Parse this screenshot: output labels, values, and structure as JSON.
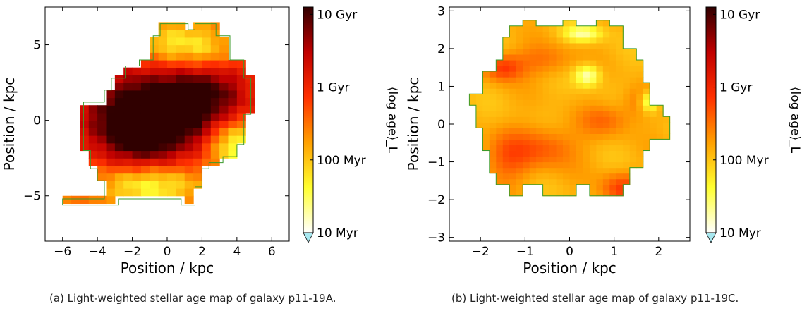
{
  "captions": {
    "a": "(a) Light-weighted stellar age map of galaxy p11-19A.",
    "b": "(b) Light-weighted stellar age map of galaxy p11-19C."
  },
  "chart_data": [
    {
      "type": "heatmap",
      "id": "a",
      "xlabel": "Position / kpc",
      "ylabel": "Position / kpc",
      "xlim": [
        -7,
        7
      ],
      "ylim": [
        -8,
        7.5
      ],
      "xticks": [
        -6,
        -4,
        -2,
        0,
        2,
        4,
        6
      ],
      "yticks": [
        -5,
        0,
        5
      ],
      "tick_labels_x": [
        "−6",
        "−4",
        "−2",
        "0",
        "2",
        "4",
        "6"
      ],
      "tick_labels_y": [
        "−5",
        "0",
        "5"
      ],
      "cell_size": 0.5,
      "outline_color": "#3a9a2a",
      "colorbar": {
        "label": "⟨log age⟩_L",
        "log_range": [
          7,
          10.1
        ],
        "ticks": [
          10,
          9,
          8,
          7
        ],
        "tick_labels": [
          "10 Gyr",
          "1 Gyr",
          "100 Myr",
          "10 Myr"
        ],
        "under_color": "#a8e8f0",
        "stops": [
          "#ffffff",
          "#ffff30",
          "#ffa000",
          "#ff3000",
          "#c00000",
          "#300000"
        ]
      },
      "polygon": [
        [
          -4.8,
          -2
        ],
        [
          -4.8,
          1.2
        ],
        [
          -3.6,
          1.2
        ],
        [
          -3.6,
          2.0
        ],
        [
          -3.2,
          2.0
        ],
        [
          -3.2,
          2.8
        ],
        [
          -2.4,
          2.8
        ],
        [
          -2.4,
          3.6
        ],
        [
          -1.6,
          3.6
        ],
        [
          -1.6,
          4.0
        ],
        [
          -0.8,
          4.0
        ],
        [
          -0.8,
          5.6
        ],
        [
          -0.4,
          5.6
        ],
        [
          -0.4,
          6.4
        ],
        [
          1.2,
          6.4
        ],
        [
          1.2,
          6.0
        ],
        [
          1.6,
          6.0
        ],
        [
          1.6,
          6.4
        ],
        [
          2.8,
          6.4
        ],
        [
          2.8,
          5.6
        ],
        [
          3.6,
          5.6
        ],
        [
          3.6,
          4.0
        ],
        [
          4.4,
          4.0
        ],
        [
          4.4,
          2.8
        ],
        [
          4.8,
          2.8
        ],
        [
          4.8,
          0.4
        ],
        [
          4.4,
          0.4
        ],
        [
          4.4,
          -1.6
        ],
        [
          4.0,
          -1.6
        ],
        [
          4.0,
          -2.4
        ],
        [
          3.2,
          -2.4
        ],
        [
          3.2,
          -2.8
        ],
        [
          2.4,
          -2.8
        ],
        [
          2.4,
          -3.2
        ],
        [
          2.0,
          -3.2
        ],
        [
          2.0,
          -4.4
        ],
        [
          1.6,
          -4.4
        ],
        [
          1.6,
          -5.6
        ],
        [
          0.8,
          -5.6
        ],
        [
          0.8,
          -5.2
        ],
        [
          -2.8,
          -5.2
        ],
        [
          -2.8,
          -5.6
        ],
        [
          -6,
          -5.6
        ],
        [
          -6,
          -5.2
        ],
        [
          -3.6,
          -5.2
        ],
        [
          -3.6,
          -4.0
        ],
        [
          -4.0,
          -4.0
        ],
        [
          -4.0,
          -3.2
        ],
        [
          -4.4,
          -3.2
        ],
        [
          -4.4,
          -2.0
        ]
      ],
      "blobs": [
        {
          "x": -0.5,
          "y": 0.8,
          "sx": 3.2,
          "sy": 2.0,
          "a": 1.9
        },
        {
          "x": -1.6,
          "y": -1.2,
          "sx": 1.8,
          "sy": 1.4,
          "a": 1.0
        },
        {
          "x": 2.6,
          "y": 2.2,
          "sx": 1.6,
          "sy": 1.5,
          "a": 0.6
        },
        {
          "x": 0.3,
          "y": 5.0,
          "sx": 1.4,
          "sy": 1.0,
          "a": -0.9
        },
        {
          "x": -1.0,
          "y": -4.3,
          "sx": 2.0,
          "sy": 0.9,
          "a": -1.0
        },
        {
          "x": 3.8,
          "y": -1.5,
          "sx": 1.0,
          "sy": 1.2,
          "a": -1.3
        },
        {
          "x": 2.4,
          "y": 4.6,
          "sx": 1.0,
          "sy": 1.0,
          "a": -0.6
        }
      ],
      "base": 8.55
    },
    {
      "type": "heatmap",
      "id": "b",
      "xlabel": "Position / kpc",
      "ylabel": "Position / kpc",
      "xlim": [
        -2.7,
        2.7
      ],
      "ylim": [
        -3.1,
        3.1
      ],
      "xticks": [
        -2,
        -1,
        0,
        1,
        2
      ],
      "yticks": [
        -3,
        -2,
        -1,
        0,
        1,
        2,
        3
      ],
      "tick_labels_x": [
        "−2",
        "−1",
        "0",
        "1",
        "2"
      ],
      "tick_labels_y": [
        "−3",
        "−2",
        "−1",
        "0",
        "1",
        "2",
        "3"
      ],
      "cell_size": 0.15,
      "outline_color": "#3a9a2a",
      "colorbar": {
        "label": "⟨log age⟩_L",
        "log_range": [
          7,
          10.1
        ],
        "ticks": [
          10,
          9,
          8,
          7
        ],
        "tick_labels": [
          "10 Gyr",
          "1 Gyr",
          "100 Myr",
          "10 Myr"
        ],
        "under_color": "#a8e8f0",
        "stops": [
          "#ffffff",
          "#ffff30",
          "#ffa000",
          "#ff3000",
          "#c00000",
          "#300000"
        ]
      },
      "polygon": [
        [
          -1.35,
          2.6
        ],
        [
          -1.05,
          2.6
        ],
        [
          -1.05,
          2.75
        ],
        [
          -0.75,
          2.75
        ],
        [
          -0.75,
          2.6
        ],
        [
          -0.15,
          2.6
        ],
        [
          -0.15,
          2.75
        ],
        [
          0.15,
          2.75
        ],
        [
          0.15,
          2.6
        ],
        [
          0.6,
          2.6
        ],
        [
          0.6,
          2.75
        ],
        [
          0.9,
          2.75
        ],
        [
          0.9,
          2.6
        ],
        [
          1.2,
          2.6
        ],
        [
          1.2,
          2.0
        ],
        [
          1.5,
          2.0
        ],
        [
          1.5,
          1.7
        ],
        [
          1.65,
          1.7
        ],
        [
          1.65,
          1.1
        ],
        [
          1.8,
          1.1
        ],
        [
          1.8,
          0.5
        ],
        [
          2.1,
          0.5
        ],
        [
          2.1,
          0.2
        ],
        [
          2.25,
          0.2
        ],
        [
          2.25,
          -0.4
        ],
        [
          1.8,
          -0.4
        ],
        [
          1.8,
          -0.7
        ],
        [
          1.65,
          -0.7
        ],
        [
          1.65,
          -1.15
        ],
        [
          1.35,
          -1.15
        ],
        [
          1.35,
          -1.6
        ],
        [
          1.2,
          -1.6
        ],
        [
          1.2,
          -1.9
        ],
        [
          0.45,
          -1.9
        ],
        [
          0.45,
          -1.6
        ],
        [
          0.15,
          -1.6
        ],
        [
          0.15,
          -1.9
        ],
        [
          -0.6,
          -1.9
        ],
        [
          -0.6,
          -1.6
        ],
        [
          -1.05,
          -1.6
        ],
        [
          -1.05,
          -1.9
        ],
        [
          -1.35,
          -1.9
        ],
        [
          -1.35,
          -1.6
        ],
        [
          -1.65,
          -1.6
        ],
        [
          -1.65,
          -1.3
        ],
        [
          -1.8,
          -1.3
        ],
        [
          -1.8,
          -0.7
        ],
        [
          -1.95,
          -0.7
        ],
        [
          -1.95,
          -0.1
        ],
        [
          -2.1,
          -0.1
        ],
        [
          -2.1,
          0.5
        ],
        [
          -2.25,
          0.5
        ],
        [
          -2.25,
          0.8
        ],
        [
          -1.95,
          0.8
        ],
        [
          -1.95,
          1.4
        ],
        [
          -1.65,
          1.4
        ],
        [
          -1.65,
          1.7
        ],
        [
          -1.5,
          1.7
        ],
        [
          -1.5,
          2.3
        ],
        [
          -1.35,
          2.3
        ]
      ],
      "blobs": [
        {
          "x": -1.5,
          "y": 1.5,
          "sx": 0.3,
          "sy": 0.25,
          "a": 0.7
        },
        {
          "x": -0.5,
          "y": -0.6,
          "sx": 0.5,
          "sy": 0.4,
          "a": 0.5
        },
        {
          "x": -0.6,
          "y": 1.7,
          "sx": 0.5,
          "sy": 0.3,
          "a": 0.4
        },
        {
          "x": 1.2,
          "y": -1.7,
          "sx": 0.35,
          "sy": 0.3,
          "a": 0.7
        },
        {
          "x": 0.8,
          "y": 0.1,
          "sx": 0.4,
          "sy": 0.3,
          "a": 0.4
        },
        {
          "x": -1.4,
          "y": -0.9,
          "sx": 0.4,
          "sy": 0.5,
          "a": 0.5
        },
        {
          "x": 1.6,
          "y": 0.6,
          "sx": 0.3,
          "sy": 0.3,
          "a": 0.4
        },
        {
          "x": 0.4,
          "y": 1.3,
          "sx": 0.2,
          "sy": 0.2,
          "a": -0.9
        },
        {
          "x": 0.3,
          "y": 2.4,
          "sx": 0.3,
          "sy": 0.15,
          "a": -0.8
        },
        {
          "x": 1.8,
          "y": 0.6,
          "sx": 0.15,
          "sy": 0.2,
          "a": -1.0
        }
      ],
      "base": 8.1
    }
  ]
}
